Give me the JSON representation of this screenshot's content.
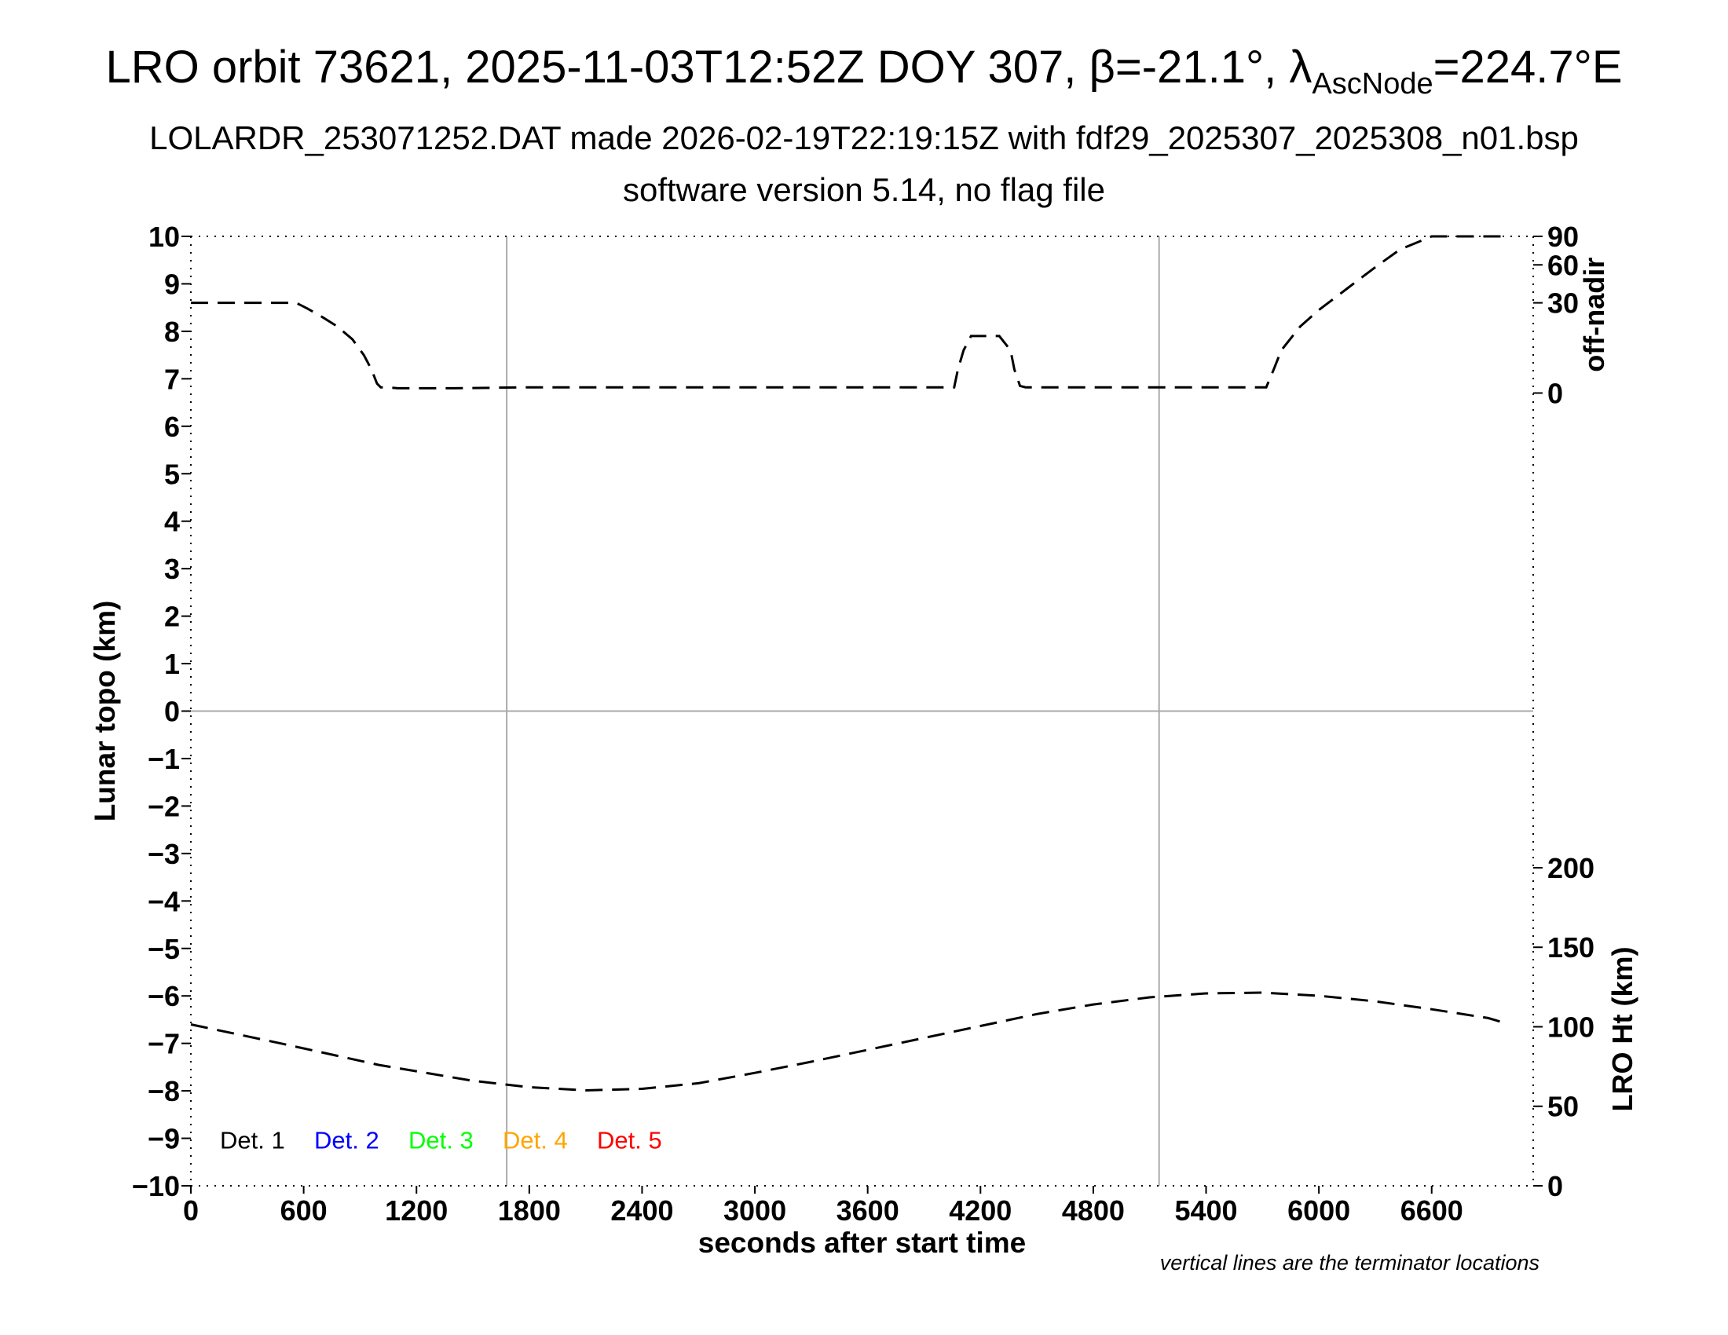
{
  "header": {
    "title_main": "LRO orbit 73621, 2025-11-03T12:52Z DOY 307, β=-21.1°, λ",
    "title_sub": "AscNode",
    "title_tail": "=224.7°E",
    "subtitle1": "LOLARDR_253071252.DAT made 2026-02-19T22:19:15Z with fdf29_2025307_2025308_n01.bsp",
    "subtitle2": "software version 5.14, no flag file"
  },
  "footnote": "vertical lines are the terminator locations",
  "chart_data": {
    "type": "line",
    "xlabel": "seconds after start time",
    "ylabel": "Lunar topo (km)",
    "xlim": [
      0,
      7140
    ],
    "ylim": [
      -10,
      10
    ],
    "x_ticks": [
      0,
      600,
      1200,
      1800,
      2400,
      3000,
      3600,
      4200,
      4800,
      5400,
      6000,
      6600
    ],
    "y_ticks": [
      10,
      9,
      8,
      7,
      6,
      5,
      4,
      3,
      2,
      1,
      0,
      -1,
      -2,
      -3,
      -4,
      -5,
      -6,
      -7,
      -8,
      -9,
      -10
    ],
    "terminator_lines_x": [
      1680,
      5150
    ],
    "right_axis_top": {
      "label": "off-nadir",
      "ticks": [
        90,
        60,
        30,
        0
      ],
      "tick_positions_left_scale": [
        10,
        9.4,
        8.6,
        6.7
      ]
    },
    "right_axis_bottom": {
      "label": "LRO Ht (km)",
      "range": [
        0,
        200
      ],
      "ticks": [
        200,
        150,
        100,
        50,
        0
      ]
    },
    "legend": [
      {
        "label": "Det. 1",
        "color": "#000000"
      },
      {
        "label": "Det. 2",
        "color": "#0000ff"
      },
      {
        "label": "Det. 3",
        "color": "#00ff00"
      },
      {
        "label": "Det. 4",
        "color": "#ffa500"
      },
      {
        "label": "Det. 5",
        "color": "#ff0000"
      }
    ],
    "legend_placement": "bottom-left",
    "grid": true,
    "series": [
      {
        "color": "#000000",
        "style": "dashed",
        "x": [
          0,
          560,
          620,
          700,
          780,
          860,
          920,
          960,
          990,
          1010,
          1050,
          1100,
          1160,
          1200,
          1400,
          1800,
          2400,
          3000,
          3600,
          4060,
          4080,
          4110,
          4150,
          4200,
          4300,
          4360,
          4380,
          4410,
          4440,
          4800,
          5400,
          5720,
          5760,
          5800,
          5900,
          6000,
          6150,
          6300,
          6430,
          6600,
          6800,
          7000
        ],
        "y": [
          8.6,
          8.6,
          8.48,
          8.3,
          8.1,
          7.83,
          7.5,
          7.2,
          6.9,
          6.82,
          6.82,
          6.8,
          6.8,
          6.8,
          6.8,
          6.82,
          6.82,
          6.82,
          6.82,
          6.82,
          7.2,
          7.6,
          7.9,
          7.9,
          7.9,
          7.6,
          7.2,
          6.85,
          6.82,
          6.82,
          6.82,
          6.82,
          7.2,
          7.6,
          8.1,
          8.45,
          8.9,
          9.35,
          9.72,
          10,
          10,
          10
        ]
      },
      {
        "color": "#000000",
        "style": "dashed",
        "x": [
          0,
          500,
          1000,
          1500,
          1800,
          2100,
          2400,
          2700,
          3000,
          3300,
          3600,
          3900,
          4200,
          4500,
          4800,
          5100,
          5400,
          5700,
          6000,
          6300,
          6600,
          6900,
          7000
        ],
        "y_right": [
          101.5,
          89,
          76,
          66,
          62,
          60,
          61,
          64.5,
          71,
          78,
          85.5,
          93,
          100.5,
          108,
          114,
          118.5,
          121,
          121.5,
          119.5,
          116,
          111,
          105.5,
          102
        ]
      }
    ]
  }
}
